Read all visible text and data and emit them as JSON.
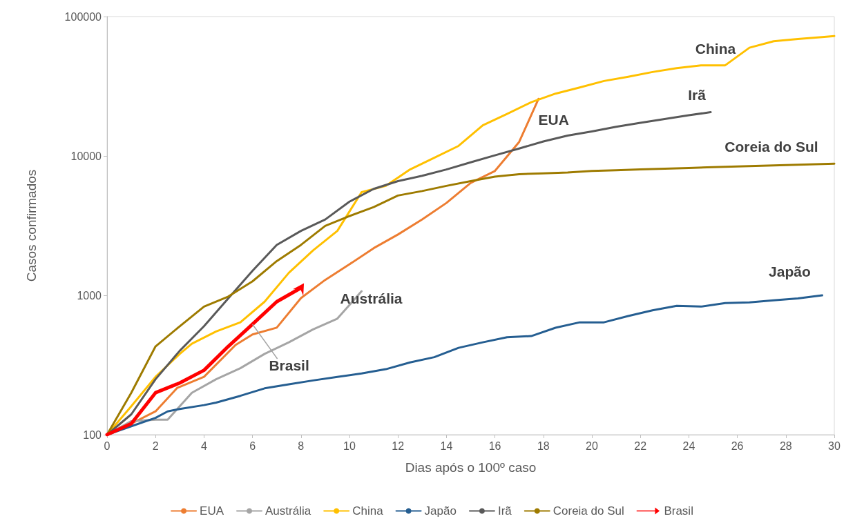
{
  "chart_data": {
    "type": "line",
    "xlabel": "Dias após o 100º caso",
    "ylabel": "Casos confirmados",
    "xlim": [
      0,
      30
    ],
    "xticks": [
      0,
      2,
      4,
      6,
      8,
      10,
      12,
      14,
      16,
      18,
      20,
      22,
      24,
      26,
      28,
      30
    ],
    "ylim": [
      100,
      100000
    ],
    "yticks": [
      100,
      1000,
      10000,
      100000
    ],
    "log": "y",
    "grid": false,
    "legend": "bottom",
    "marker": "none",
    "line_style": "solid",
    "series": [
      {
        "name": "EUA",
        "color": "#ed7d31",
        "x": [
          0,
          1,
          2,
          2.9,
          4,
          5.3,
          6,
          7,
          8,
          9,
          10,
          11,
          12,
          13,
          14,
          15,
          16,
          17,
          17.8
        ],
        "values": [
          100,
          120,
          147,
          217,
          260,
          440,
          524,
          586,
          955,
          1290,
          1670,
          2180,
          2730,
          3500,
          4600,
          6400,
          7800,
          12600,
          25700
        ]
      },
      {
        "name": "Austrália",
        "color": "#a5a5a5",
        "x": [
          0,
          1,
          2,
          2.5,
          3.5,
          4.5,
          5.5,
          6.5,
          7.5,
          8.5,
          9.5,
          10.5
        ],
        "values": [
          100,
          125,
          128,
          128,
          200,
          250,
          300,
          380,
          460,
          570,
          680,
          1070
        ]
      },
      {
        "name": "China",
        "color": "#ffc000",
        "x": [
          0,
          1,
          2,
          3,
          3.5,
          4.5,
          5.5,
          6.5,
          7.5,
          8.5,
          9.5,
          10.5,
          11.5,
          12.5,
          13.5,
          14.5,
          15.5,
          16.5,
          17.5,
          18.5,
          19.5,
          20.5,
          21.5,
          22.5,
          23.5,
          24.5,
          25.5,
          26.5,
          27.5,
          28.5,
          29.5,
          30
        ],
        "values": [
          100,
          160,
          260,
          380,
          450,
          550,
          640,
          900,
          1450,
          2100,
          2900,
          5500,
          6100,
          8000,
          9700,
          11800,
          16600,
          20000,
          24300,
          28000,
          31000,
          34500,
          37000,
          40000,
          42700,
          44600,
          44700,
          59800,
          66500,
          69000,
          71300,
          72500
        ]
      },
      {
        "name": "Japão",
        "color": "#255e91",
        "x": [
          0,
          1,
          2,
          2.5,
          3,
          4,
          4.5,
          5.5,
          6.5,
          7.5,
          8.5,
          9.5,
          10.5,
          11.5,
          12.5,
          13.5,
          14.5,
          15.5,
          16.5,
          17.5,
          18.5,
          19.5,
          20.5,
          21.5,
          22.5,
          23.5,
          24.5,
          25.5,
          26.5,
          27.5,
          28.5,
          29.5
        ],
        "values": [
          100,
          115,
          132,
          147,
          153,
          163,
          170,
          190,
          215,
          230,
          245,
          260,
          275,
          295,
          330,
          360,
          420,
          460,
          500,
          510,
          585,
          640,
          640,
          710,
          780,
          840,
          830,
          880,
          890,
          920,
          950,
          1000
        ]
      },
      {
        "name": "Irã",
        "color": "#595959",
        "x": [
          0,
          1,
          2,
          3,
          4,
          5,
          6,
          7,
          8,
          9,
          10,
          11,
          12,
          13,
          14,
          15,
          16,
          17,
          18,
          19,
          20,
          21,
          22,
          23,
          24,
          24.9
        ],
        "values": [
          100,
          140,
          250,
          400,
          600,
          950,
          1500,
          2300,
          2900,
          3500,
          4700,
          5800,
          6600,
          7200,
          8000,
          9000,
          10100,
          11300,
          12700,
          14000,
          15000,
          16200,
          17300,
          18400,
          19600,
          20600
        ]
      },
      {
        "name": "Coreia do Sul",
        "color": "#9e7b00",
        "x": [
          0,
          1,
          2,
          3,
          4,
          5,
          6,
          7,
          8,
          9,
          10,
          11,
          12,
          13,
          14,
          15,
          16,
          17,
          18,
          19,
          20,
          21,
          22,
          23,
          24,
          25,
          26,
          27,
          28,
          29,
          30
        ],
        "values": [
          100,
          200,
          430,
          600,
          830,
          980,
          1260,
          1760,
          2300,
          3150,
          3700,
          4300,
          5200,
          5600,
          6100,
          6600,
          7100,
          7400,
          7500,
          7600,
          7800,
          7900,
          8000,
          8100,
          8200,
          8300,
          8400,
          8500,
          8600,
          8700,
          8800
        ]
      },
      {
        "name": "Brasil",
        "color": "#ff0000",
        "x": [
          0,
          1,
          2,
          3,
          4,
          5,
          6,
          7,
          8
        ],
        "values": [
          100,
          120,
          200,
          235,
          290,
          430,
          620,
          900,
          1130
        ]
      }
    ],
    "annotations": [
      "EUA",
      "Austrália",
      "China",
      "Japão",
      "Irã",
      "Coreia do Sul",
      {
        "text": "Brasil",
        "x": 6,
        "y": 620
      }
    ]
  }
}
